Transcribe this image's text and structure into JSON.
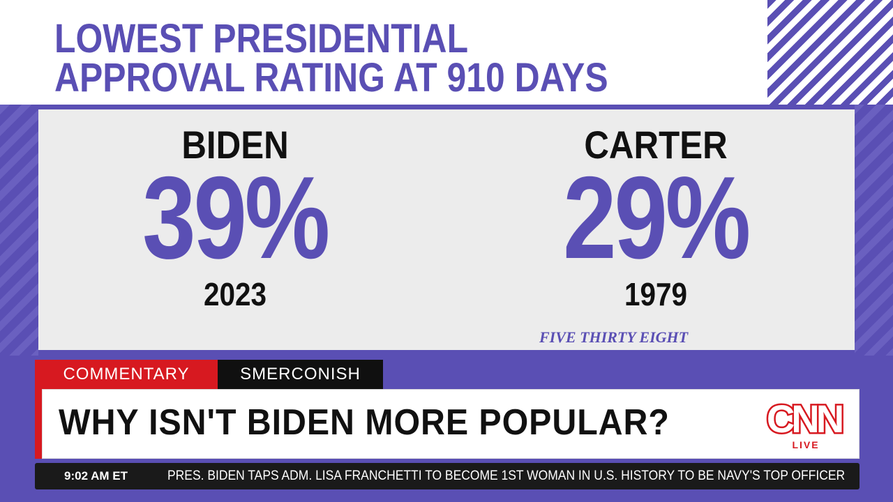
{
  "headline": {
    "line1": "LOWEST PRESIDENTIAL",
    "line2": "APPROVAL RATING AT 910 DAYS"
  },
  "comparison": [
    {
      "name": "BIDEN",
      "approval": "39%",
      "year": "2023"
    },
    {
      "name": "CARTER",
      "approval": "29%",
      "year": "1979"
    }
  ],
  "source": "FIVE THIRTY EIGHT",
  "lower_third": {
    "tag_primary": "COMMENTARY",
    "tag_secondary": "SMERCONISH",
    "headline": "WHY ISN'T BIDEN MORE POPULAR?",
    "network_logo_text": "CNN",
    "live_label": "LIVE"
  },
  "ticker": {
    "time": "9:02 AM ET",
    "text": "PRES. BIDEN TAPS ADM. LISA FRANCHETTI TO BECOME 1ST WOMAN IN U.S. HISTORY TO BE NAVY'S TOP OFFICER"
  },
  "colors": {
    "accent_purple": "#5a4fb4",
    "cnn_red": "#d71920",
    "panel_gray": "#ececec"
  }
}
